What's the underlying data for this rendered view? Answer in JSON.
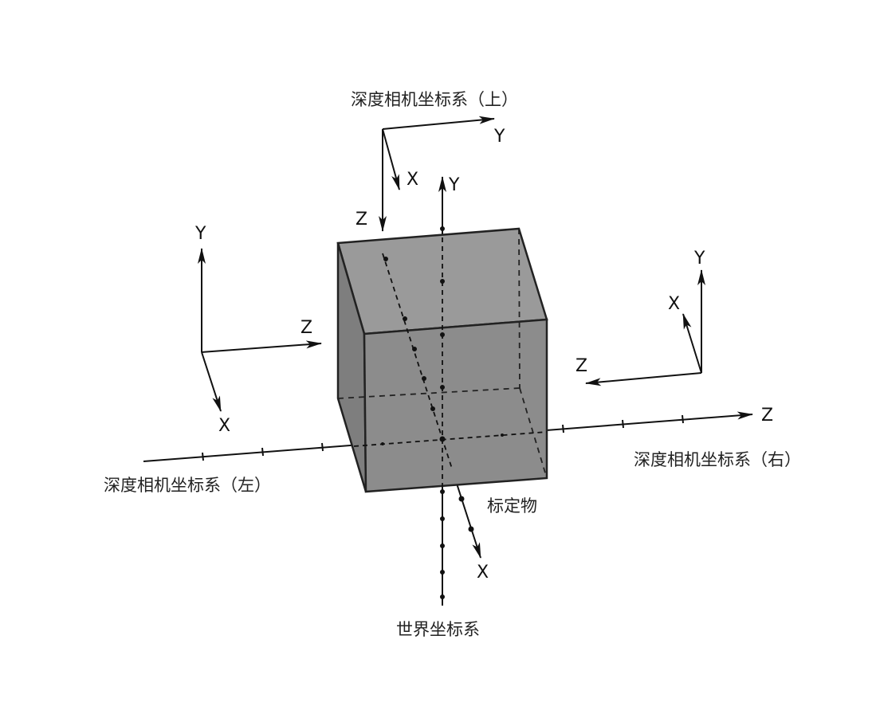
{
  "labels": {
    "top_frame": "深度相机坐标系（上）",
    "left_frame": "深度相机坐标系（左）",
    "right_frame": "深度相机坐标系（右）",
    "world_frame": "世界坐标系",
    "target": "标定物"
  },
  "axes": {
    "x": "X",
    "y": "Y",
    "z": "Z"
  },
  "colors": {
    "cube_fill": "#8c8c8c",
    "cube_edge": "#222222",
    "line": "#111111",
    "background": "#ffffff"
  }
}
